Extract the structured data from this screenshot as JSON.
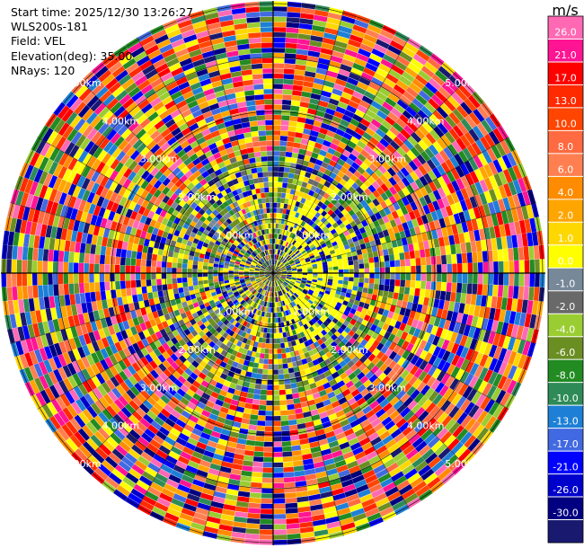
{
  "header": {
    "start_time": "Start time: 2025/12/30 13:26:27",
    "site": "WLS200s-181",
    "field": "Field: VEL",
    "elevation": "Elevation(deg): 35.00",
    "nrays": "NRays: 120"
  },
  "chart_data": {
    "type": "heatmap",
    "projection": "polar-ppi",
    "n_rays": 120,
    "range_ring_labels_upper": [
      "1.00km",
      "2.00km",
      "3.00km",
      "4.00km",
      "5.00km"
    ],
    "range_ring_labels_lower": [
      "1.00km",
      "2.00km",
      "3.00km",
      "4.00km",
      "5.00km"
    ],
    "colorbar": {
      "unit": "m/s",
      "ticks": [
        "26.0",
        "21.0",
        "17.0",
        "13.0",
        "10.0",
        "8.0",
        "6.0",
        "4.0",
        "2.0",
        "1.0",
        "0.0",
        "-1.0",
        "-2.0",
        "-4.0",
        "-6.0",
        "-8.0",
        "-10.0",
        "-13.0",
        "-17.0",
        "-21.0",
        "-26.0",
        "-30.0"
      ],
      "colors": [
        "#ff69b4",
        "#ff1493",
        "#ff0000",
        "#ff2a00",
        "#ff4500",
        "#ff6a40",
        "#ff7f50",
        "#ff8c00",
        "#ffa500",
        "#ffd700",
        "#ffff00",
        "#778899",
        "#696969",
        "#9acd32",
        "#6b8e23",
        "#228b22",
        "#2e8b57",
        "#1e7fd6",
        "#4169e1",
        "#0000ff",
        "#0000cd",
        "#000080",
        "#191970"
      ]
    }
  }
}
